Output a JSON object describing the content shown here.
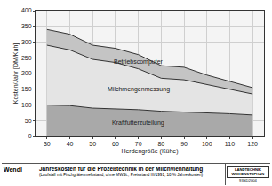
{
  "chart_data": {
    "type": "area",
    "stacked": true,
    "grid": true,
    "title": "Jahreskosten für die Prozeßtechnik in der Milchviehhaltung",
    "subtitle": "(Laufstall mit Fischgrätenmelkstand, ohne MWSt., Preisstand III/1991, 10 % Jahreskosten)",
    "x_label": "Herdengröße (Kühe)",
    "y_label": "Kosten/Jahr [DM/Kuh]",
    "x": [
      30,
      40,
      50,
      60,
      70,
      80,
      90,
      100,
      110,
      120
    ],
    "series": [
      {
        "name": "Kraftfutterzuteilung",
        "color": "#a9a9a9",
        "values": [
          100,
          98,
          90,
          88,
          85,
          80,
          78,
          75,
          72,
          68
        ]
      },
      {
        "name": "Milchmengenmessung",
        "color": "#e4e4e4",
        "values": [
          190,
          177,
          155,
          147,
          130,
          105,
          102,
          90,
          76,
          67
        ]
      },
      {
        "name": "Betriebscomputer",
        "color": "#c4c4c4",
        "values": [
          50,
          50,
          45,
          45,
          45,
          40,
          40,
          30,
          27,
          20
        ]
      }
    ],
    "xlim": [
      25,
      125
    ],
    "xticks": [
      30,
      40,
      50,
      60,
      70,
      80,
      90,
      100,
      110,
      120
    ],
    "ylim": [
      0,
      400
    ],
    "yticks": [
      0,
      50,
      100,
      150,
      200,
      250,
      300,
      350,
      400
    ],
    "footer": {
      "author": "Wendl",
      "logo": "LANDTECHNIK WEIHENSTEPHAN",
      "code": "93SD2004"
    }
  }
}
